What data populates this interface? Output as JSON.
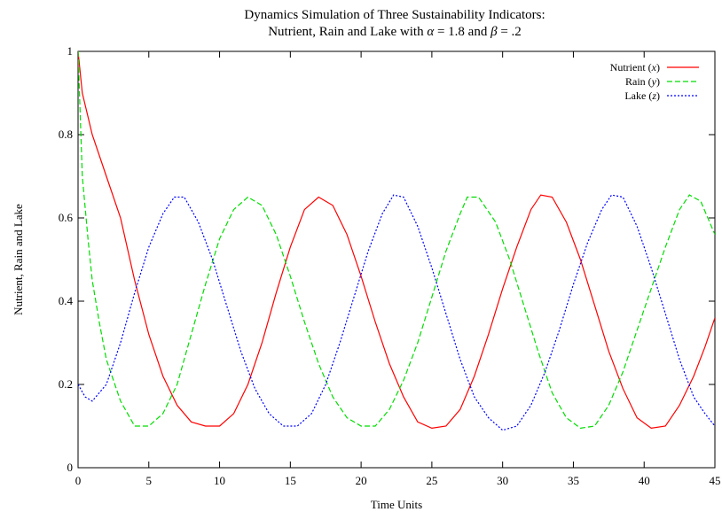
{
  "chart_data": {
    "type": "line",
    "title_line1": "Dynamics Simulation of Three Sustainability Indicators:",
    "title_line2_prefix": "Nutrient, Rain and Lake with ",
    "alpha_symbol": "α",
    "alpha_value": " = 1.8 and ",
    "beta_symbol": "β",
    "beta_value": " = .2",
    "xlabel": "Time Units",
    "ylabel": "Nutrient, Rain and Lake",
    "xlim": [
      0,
      45
    ],
    "ylim": [
      0,
      1
    ],
    "x_ticks": [
      "0",
      "5",
      "10",
      "15",
      "20",
      "25",
      "30",
      "35",
      "40",
      "45"
    ],
    "y_ticks": [
      "0",
      "0.2",
      "0.4",
      "0.6",
      "0.8",
      "1"
    ],
    "grid": false,
    "legend_position": "top-right",
    "series": [
      {
        "name": "Nutrient",
        "var": "x",
        "color": "#ff0000",
        "dash": "solid",
        "points": [
          [
            0,
            1.0
          ],
          [
            0.3,
            0.9
          ],
          [
            1,
            0.8
          ],
          [
            2,
            0.7
          ],
          [
            3,
            0.6
          ],
          [
            4,
            0.45
          ],
          [
            5,
            0.32
          ],
          [
            6,
            0.22
          ],
          [
            7,
            0.15
          ],
          [
            8,
            0.11
          ],
          [
            9,
            0.1
          ],
          [
            10,
            0.1
          ],
          [
            11,
            0.13
          ],
          [
            12,
            0.2
          ],
          [
            13,
            0.3
          ],
          [
            14,
            0.42
          ],
          [
            15,
            0.53
          ],
          [
            16,
            0.62
          ],
          [
            17,
            0.65
          ],
          [
            18,
            0.63
          ],
          [
            19,
            0.56
          ],
          [
            20,
            0.46
          ],
          [
            21,
            0.35
          ],
          [
            22,
            0.25
          ],
          [
            23,
            0.17
          ],
          [
            24,
            0.11
          ],
          [
            25,
            0.095
          ],
          [
            26,
            0.1
          ],
          [
            27,
            0.14
          ],
          [
            28,
            0.22
          ],
          [
            29,
            0.32
          ],
          [
            30,
            0.43
          ],
          [
            31,
            0.53
          ],
          [
            32,
            0.62
          ],
          [
            32.7,
            0.655
          ],
          [
            33.5,
            0.65
          ],
          [
            34.5,
            0.59
          ],
          [
            35.5,
            0.5
          ],
          [
            36.5,
            0.39
          ],
          [
            37.5,
            0.28
          ],
          [
            38.5,
            0.19
          ],
          [
            39.5,
            0.12
          ],
          [
            40.5,
            0.095
          ],
          [
            41.5,
            0.1
          ],
          [
            42.5,
            0.15
          ],
          [
            43.5,
            0.22
          ],
          [
            44.3,
            0.29
          ],
          [
            45,
            0.36
          ]
        ]
      },
      {
        "name": "Rain",
        "var": "y",
        "color": "#00dd00",
        "dash": "dashed",
        "points": [
          [
            0,
            1.0
          ],
          [
            0.3,
            0.7
          ],
          [
            0.7,
            0.55
          ],
          [
            1,
            0.45
          ],
          [
            1.5,
            0.35
          ],
          [
            2,
            0.26
          ],
          [
            3,
            0.16
          ],
          [
            4,
            0.1
          ],
          [
            5,
            0.1
          ],
          [
            6,
            0.13
          ],
          [
            7,
            0.2
          ],
          [
            8,
            0.32
          ],
          [
            9,
            0.44
          ],
          [
            10,
            0.55
          ],
          [
            11,
            0.62
          ],
          [
            12,
            0.65
          ],
          [
            13,
            0.63
          ],
          [
            14,
            0.56
          ],
          [
            15,
            0.46
          ],
          [
            16,
            0.35
          ],
          [
            17,
            0.25
          ],
          [
            18,
            0.17
          ],
          [
            19,
            0.12
          ],
          [
            20,
            0.1
          ],
          [
            21,
            0.1
          ],
          [
            22,
            0.14
          ],
          [
            23,
            0.21
          ],
          [
            24,
            0.3
          ],
          [
            25,
            0.41
          ],
          [
            26,
            0.52
          ],
          [
            27,
            0.61
          ],
          [
            27.5,
            0.65
          ],
          [
            28.3,
            0.65
          ],
          [
            29.5,
            0.59
          ],
          [
            30.5,
            0.5
          ],
          [
            31.5,
            0.39
          ],
          [
            32.5,
            0.28
          ],
          [
            33.5,
            0.18
          ],
          [
            34.5,
            0.12
          ],
          [
            35.5,
            0.095
          ],
          [
            36.5,
            0.1
          ],
          [
            37.5,
            0.15
          ],
          [
            38.5,
            0.23
          ],
          [
            39.5,
            0.33
          ],
          [
            40.5,
            0.43
          ],
          [
            41.5,
            0.53
          ],
          [
            42.5,
            0.62
          ],
          [
            43.2,
            0.655
          ],
          [
            44,
            0.64
          ],
          [
            45,
            0.56
          ]
        ]
      },
      {
        "name": "Lake",
        "var": "z",
        "color": "#0000ff",
        "dash": "dotted",
        "points": [
          [
            0,
            0.2
          ],
          [
            0.5,
            0.17
          ],
          [
            1,
            0.16
          ],
          [
            2,
            0.2
          ],
          [
            3,
            0.3
          ],
          [
            4,
            0.42
          ],
          [
            5,
            0.53
          ],
          [
            6,
            0.61
          ],
          [
            6.8,
            0.65
          ],
          [
            7.5,
            0.65
          ],
          [
            8.5,
            0.59
          ],
          [
            9.5,
            0.5
          ],
          [
            10.5,
            0.39
          ],
          [
            11.5,
            0.28
          ],
          [
            12.5,
            0.19
          ],
          [
            13.5,
            0.13
          ],
          [
            14.5,
            0.1
          ],
          [
            15.5,
            0.1
          ],
          [
            16.5,
            0.13
          ],
          [
            17.5,
            0.2
          ],
          [
            18.5,
            0.3
          ],
          [
            19.5,
            0.41
          ],
          [
            20.5,
            0.52
          ],
          [
            21.5,
            0.61
          ],
          [
            22.3,
            0.655
          ],
          [
            23,
            0.65
          ],
          [
            24,
            0.58
          ],
          [
            25,
            0.48
          ],
          [
            26,
            0.37
          ],
          [
            27,
            0.26
          ],
          [
            28,
            0.17
          ],
          [
            29,
            0.12
          ],
          [
            30,
            0.09
          ],
          [
            31,
            0.1
          ],
          [
            32,
            0.15
          ],
          [
            33,
            0.23
          ],
          [
            34,
            0.33
          ],
          [
            35,
            0.44
          ],
          [
            36,
            0.54
          ],
          [
            37,
            0.62
          ],
          [
            37.7,
            0.655
          ],
          [
            38.5,
            0.65
          ],
          [
            39.5,
            0.58
          ],
          [
            40.5,
            0.48
          ],
          [
            41.5,
            0.37
          ],
          [
            42.5,
            0.26
          ],
          [
            43.5,
            0.17
          ],
          [
            44.3,
            0.13
          ],
          [
            45,
            0.1
          ]
        ]
      }
    ]
  }
}
